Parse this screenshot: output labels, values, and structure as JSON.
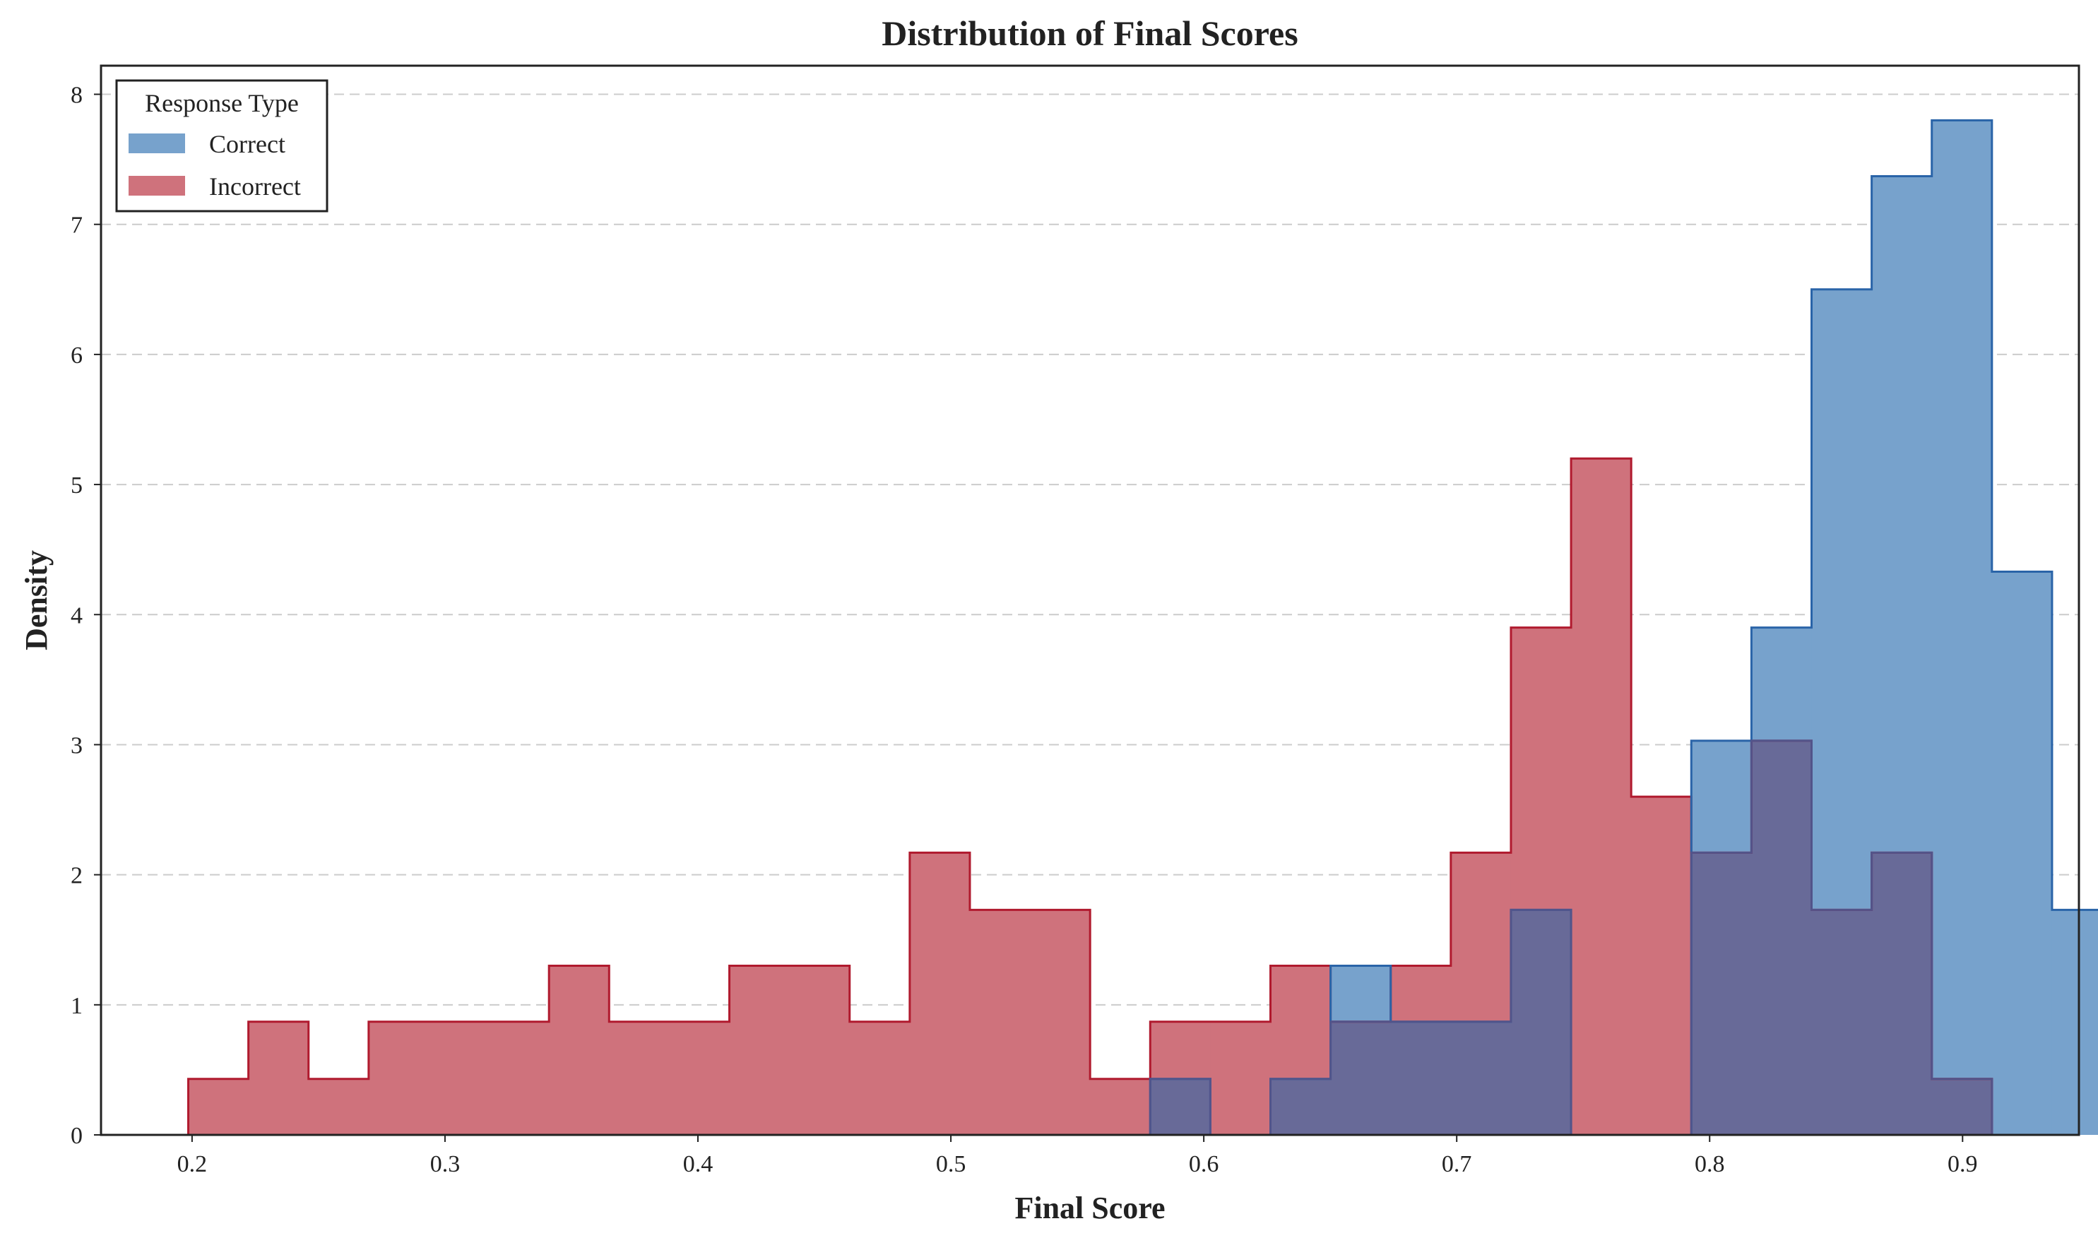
{
  "chart_data": {
    "type": "histogram",
    "title": "Distribution of Final Scores",
    "xlabel": "Final Score",
    "ylabel": "Density",
    "xlim": [
      0.164,
      0.946
    ],
    "ylim": [
      0,
      8.22
    ],
    "x_ticks": [
      0.2,
      0.3,
      0.4,
      0.5,
      0.6,
      0.7,
      0.8,
      0.9
    ],
    "x_tick_labels": [
      "0.2",
      "0.3",
      "0.4",
      "0.5",
      "0.6",
      "0.7",
      "0.8",
      "0.9"
    ],
    "y_ticks": [
      0,
      1,
      2,
      3,
      4,
      5,
      6,
      7,
      8
    ],
    "y_tick_labels": [
      "0",
      "1",
      "2",
      "3",
      "4",
      "5",
      "6",
      "7",
      "8"
    ],
    "grid": "horizontal dashed",
    "legend": {
      "title": "Response Type",
      "placement": "top-left",
      "entries": [
        "Correct",
        "Incorrect"
      ]
    },
    "bin_start": 0.1985,
    "bin_width": 0.02377,
    "series": [
      {
        "name": "Correct",
        "fill": "#77a2cc",
        "stroke": "#2a64a8",
        "values": [
          0,
          0,
          0,
          0,
          0,
          0,
          0,
          0,
          0,
          0,
          0,
          0,
          0,
          0,
          0,
          0,
          0.43,
          0,
          0.43,
          1.3,
          0.87,
          0.87,
          1.73,
          0,
          0,
          3.03,
          3.9,
          6.5,
          7.37,
          7.8,
          4.33,
          1.73
        ]
      },
      {
        "name": "Incorrect",
        "fill": "#cf727c",
        "stroke": "#b01a2e",
        "values": [
          0.43,
          0.87,
          0.43,
          0.87,
          0.87,
          0.87,
          1.3,
          0.87,
          0.87,
          1.3,
          1.3,
          0.87,
          2.17,
          1.73,
          1.73,
          0.43,
          0.87,
          0.87,
          1.3,
          0.87,
          1.3,
          2.17,
          3.9,
          5.2,
          2.6,
          2.17,
          3.03,
          1.73,
          2.17,
          0.43,
          0,
          0
        ]
      }
    ],
    "overlap_fill": "#686a98",
    "overlap_stroke": "#52548a",
    "grid_color": "#cccccc",
    "frame_color": "#222222"
  }
}
